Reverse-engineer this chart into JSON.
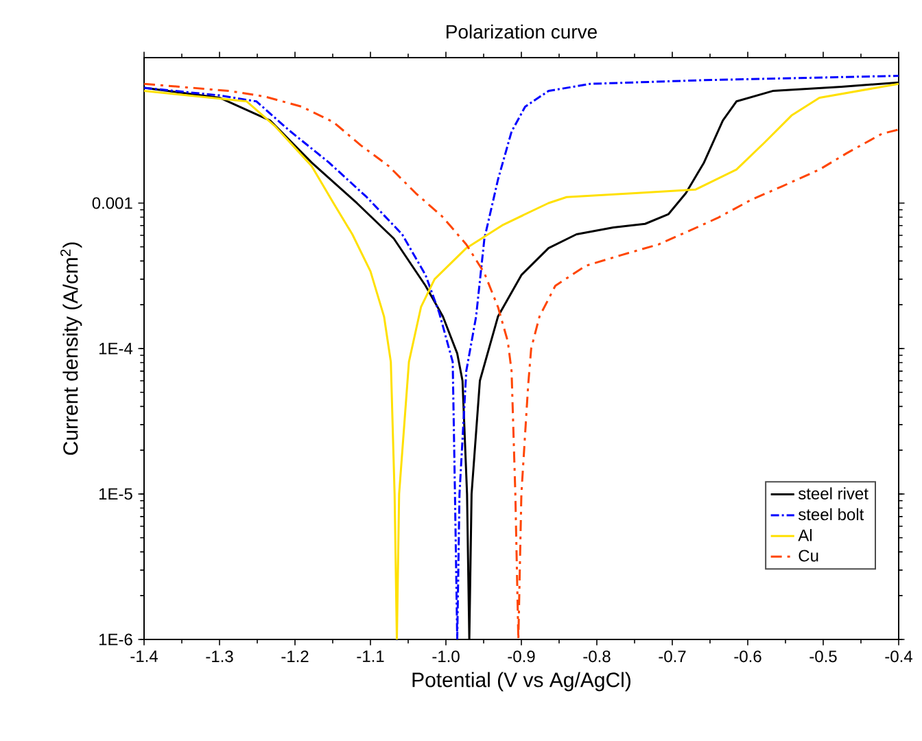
{
  "chart_data": {
    "type": "line",
    "title": "Polarization curve",
    "xlabel": "Potential (V vs Ag/AgCl)",
    "ylabel": "Current density (A/cm$^{2}$)",
    "log": "y",
    "grid": false,
    "legend": "bottom right",
    "xlim": [
      -1.4,
      -0.4
    ],
    "ylim": [
      1e-06,
      0.01
    ],
    "xticks": [
      -1.4,
      -1.3,
      -1.2,
      -1.1,
      {
        "value": -1.0,
        "label": "-1.0"
      },
      -0.9,
      -0.8,
      -0.7,
      -0.6,
      -0.5,
      -0.4
    ],
    "yticks": [
      {
        "value": 1e-06,
        "label": "1E-6"
      },
      {
        "value": 1e-05,
        "label": "1E-5"
      },
      {
        "value": 0.0001,
        "label": "1E-4"
      },
      0.001
    ],
    "series": [
      {
        "name": "steel rivet",
        "color": "#000000",
        "line_style": "solid",
        "x": [
          -1.4,
          -1.3,
          -1.233,
          -1.178,
          -1.118,
          -1.069,
          -1.027,
          -1.004,
          -0.985,
          -0.978,
          -0.972,
          -0.969,
          -0.966,
          -0.955,
          -0.931,
          -0.9,
          -0.864,
          -0.827,
          -0.778,
          -0.736,
          -0.705,
          -0.682,
          -0.658,
          -0.633,
          -0.615,
          -0.567,
          -0.476,
          -0.4
        ],
        "values": [
          0.0062,
          0.0053,
          0.0037,
          0.0019,
          0.001,
          0.00057,
          0.00027,
          0.000166,
          9.25e-05,
          6e-05,
          1e-05,
          1e-06,
          1e-05,
          6e-05,
          0.000166,
          0.00032,
          0.00049,
          0.00061,
          0.00068,
          0.00072,
          0.00084,
          0.00117,
          0.0019,
          0.0037,
          0.005,
          0.0059,
          0.0063,
          0.00675
        ]
      },
      {
        "name": "steel bolt",
        "color": "#0000ff",
        "line_style": "dashdot",
        "x": [
          -1.4,
          -1.3,
          -1.251,
          -1.209,
          -1.155,
          -1.105,
          -1.058,
          -1.027,
          -1.009,
          -0.991,
          -0.988,
          -0.985,
          -0.982,
          -0.973,
          -0.96,
          -0.949,
          -0.931,
          -0.913,
          -0.895,
          -0.864,
          -0.809,
          -0.658,
          -0.4
        ],
        "values": [
          0.0062,
          0.0055,
          0.005,
          0.0032,
          0.0019,
          0.0011,
          0.00061,
          0.00032,
          0.000177,
          8.1e-05,
          1e-05,
          1e-06,
          1e-05,
          7e-05,
          0.000166,
          0.00057,
          0.00145,
          0.0031,
          0.0046,
          0.0059,
          0.0066,
          0.007,
          0.0075
        ]
      },
      {
        "name": "Al",
        "color": "#ffe000",
        "line_style": "solid",
        "x": [
          -1.4,
          -1.264,
          -1.227,
          -1.178,
          -1.149,
          -1.124,
          -1.1,
          -1.082,
          -1.073,
          -1.068,
          -1.065,
          -1.062,
          -1.049,
          -1.033,
          -1.015,
          -0.973,
          -0.924,
          -0.864,
          -0.84,
          -0.749,
          -0.669,
          -0.615,
          -0.578,
          -0.542,
          -0.505,
          -0.4
        ],
        "values": [
          0.0059,
          0.005,
          0.0034,
          0.0018,
          0.001,
          0.00061,
          0.00034,
          0.000166,
          8.1e-05,
          1e-05,
          1e-06,
          1e-05,
          8.1e-05,
          0.000193,
          0.0003,
          0.00049,
          0.00071,
          0.001,
          0.0011,
          0.00117,
          0.00124,
          0.0017,
          0.0026,
          0.004,
          0.0053,
          0.0066
        ]
      },
      {
        "name": "Cu",
        "color": "#ff4500",
        "line_style": "dashdotted",
        "x": [
          -1.4,
          -1.336,
          -1.287,
          -1.24,
          -1.191,
          -1.149,
          -1.113,
          -1.076,
          -1.04,
          -1.005,
          -0.973,
          -0.949,
          -0.931,
          -0.918,
          -0.913,
          -0.908,
          -0.904,
          -0.9,
          -0.891,
          -0.887,
          -0.876,
          -0.855,
          -0.815,
          -0.767,
          -0.718,
          -0.676,
          -0.64,
          -0.596,
          -0.555,
          -0.505,
          -0.469,
          -0.422,
          -0.4
        ],
        "values": [
          0.0066,
          0.0062,
          0.0059,
          0.0054,
          0.0046,
          0.0036,
          0.0025,
          0.0018,
          0.00117,
          0.00081,
          0.00052,
          0.00033,
          0.000193,
          0.000112,
          7e-05,
          1e-05,
          1e-06,
          1e-05,
          5.6e-05,
          0.0001,
          0.000166,
          0.00027,
          0.00037,
          0.00044,
          0.00052,
          0.00065,
          0.00079,
          0.00105,
          0.0013,
          0.0017,
          0.0022,
          0.003,
          0.0032
        ]
      }
    ]
  }
}
